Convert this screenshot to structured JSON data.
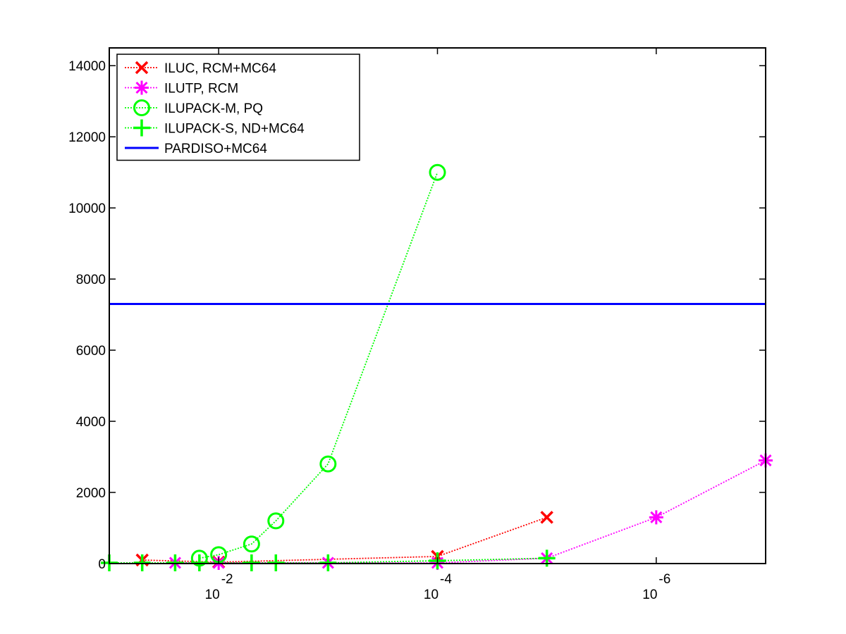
{
  "chart_data": {
    "type": "line",
    "title": "",
    "xlabel": "",
    "ylabel": "",
    "x_scale": "log-reversed",
    "xlim": [
      0.1,
      1e-07
    ],
    "ylim": [
      0,
      14500
    ],
    "x_ticks": [
      {
        "value": 0.01,
        "base": "10",
        "exponent": "-2"
      },
      {
        "value": 0.0001,
        "base": "10",
        "exponent": "-4"
      },
      {
        "value": 1e-06,
        "base": "10",
        "exponent": "-6"
      }
    ],
    "y_ticks": [
      {
        "value": 0,
        "label": "0"
      },
      {
        "value": 2000,
        "label": "2000"
      },
      {
        "value": 4000,
        "label": "4000"
      },
      {
        "value": 6000,
        "label": "6000"
      },
      {
        "value": 8000,
        "label": "8000"
      },
      {
        "value": 10000,
        "label": "10000"
      },
      {
        "value": 12000,
        "label": "12000"
      },
      {
        "value": 14000,
        "label": "14000"
      }
    ],
    "grid": false,
    "legend_position": "top-left",
    "series": [
      {
        "name": "ILUC, RCM+MC64",
        "color": "#ff0000",
        "marker": "x-mark",
        "line": "dotted",
        "x": [
          0.05,
          0.01,
          0.0001,
          1e-05
        ],
        "y": [
          100,
          40,
          200,
          1300
        ]
      },
      {
        "name": "ILUTP, RCM",
        "color": "#ff00ff",
        "marker": "asterisk",
        "line": "dotted",
        "x": [
          0.025,
          0.01,
          0.001,
          0.0001,
          1e-05,
          1e-06,
          1e-07
        ],
        "y": [
          20,
          20,
          20,
          20,
          150,
          1300,
          2900
        ]
      },
      {
        "name": "ILUPACK-M, PQ",
        "color": "#00ff00",
        "marker": "circle",
        "line": "dotted",
        "x": [
          0.015,
          0.01,
          0.005,
          0.003,
          0.001,
          0.0001
        ],
        "y": [
          150,
          250,
          550,
          1200,
          2800,
          11000
        ]
      },
      {
        "name": "ILUPACK-S, ND+MC64",
        "color": "#00ff00",
        "marker": "plus",
        "line": "dotted",
        "x": [
          0.1,
          0.05,
          0.025,
          0.015,
          0.005,
          0.003,
          0.001,
          0.0001,
          1e-05
        ],
        "y": [
          20,
          20,
          20,
          20,
          20,
          20,
          20,
          80,
          150
        ]
      },
      {
        "name": "PARDISO+MC64",
        "color": "#0000ff",
        "marker": "none",
        "line": "solid",
        "x": [
          0.1,
          1e-07
        ],
        "y": [
          7300,
          7300
        ]
      }
    ]
  }
}
